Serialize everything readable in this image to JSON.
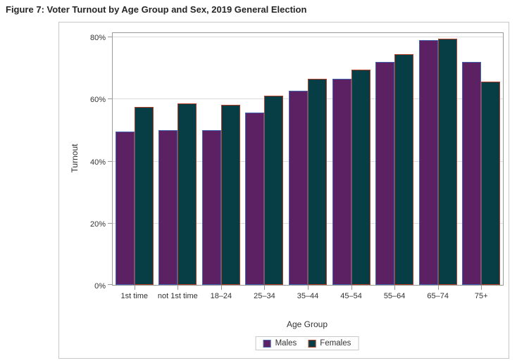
{
  "chart_data": {
    "type": "bar",
    "title": "Figure 7: Voter Turnout by Age Group and Sex, 2019 General Election",
    "xlabel": "Age Group",
    "ylabel": "Turnout",
    "categories": [
      "1st time",
      "not 1st time",
      "18–24",
      "25–34",
      "35–44",
      "45–54",
      "55–64",
      "65–74",
      "75+"
    ],
    "series": [
      {
        "name": "Males",
        "fill": "#5b2162",
        "border": "#4565ae",
        "values": [
          49.5,
          50,
          50,
          55.5,
          62.5,
          66.5,
          72,
          79,
          72
        ]
      },
      {
        "name": "Females",
        "fill": "#073d45",
        "border": "#b23f28",
        "values": [
          57.5,
          58.5,
          58,
          61,
          66.5,
          69.5,
          74.5,
          79.5,
          65.5
        ]
      }
    ],
    "ylim": [
      0,
      81.2
    ],
    "yticks": [
      0,
      20,
      40,
      60,
      80
    ],
    "ytick_suffix": "%",
    "grid": "horizontal",
    "legend_position": "bottom"
  },
  "colors": {
    "grid": "#dcdcdc",
    "axis": "#999999",
    "box_border": "#c8c8c8",
    "text": "#333333"
  }
}
